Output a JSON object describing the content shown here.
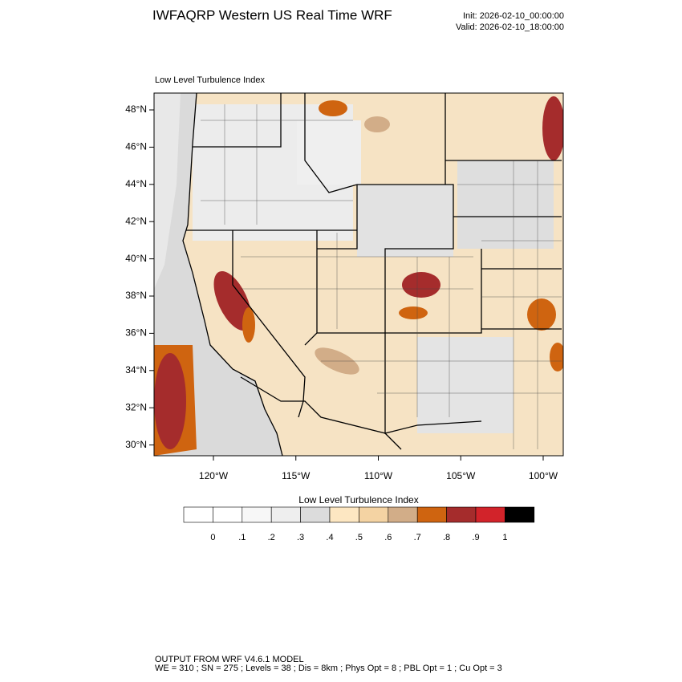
{
  "header": {
    "title": "IWFAQRP Western US Real Time WRF",
    "init": "Init: 2026-02-10_00:00:00",
    "valid": "Valid: 2026-02-10_18:00:00"
  },
  "map": {
    "subtitle": "Low Level Turbulence Index",
    "lat_labels": [
      "48°N",
      "46°N",
      "44°N",
      "42°N",
      "40°N",
      "38°N",
      "36°N",
      "34°N",
      "32°N",
      "30°N"
    ],
    "lon_labels": [
      "120°W",
      "115°W",
      "110°W",
      "105°W",
      "100°W"
    ]
  },
  "colorbar": {
    "title": "Low Level Turbulence Index",
    "labels": [
      "0",
      ".1",
      ".2",
      ".3",
      ".4",
      ".5",
      ".6",
      ".7",
      ".8",
      ".9",
      "1"
    ],
    "colors": [
      "#ffffff",
      "#f7f7f7",
      "#eeeeee",
      "#dcdcdc",
      "#fde7c2",
      "#f4d3a3",
      "#d2ad88",
      "#cf6410",
      "#a52c2c",
      "#d2232a",
      "#000000"
    ],
    "last_color": "#000000"
  },
  "footer": {
    "line1": "OUTPUT FROM WRF V4.6.1 MODEL",
    "line2": "WE = 310 ; SN = 275 ; Levels = 38 ; Dis = 8km ; Phys Opt = 8 ; PBL Opt = 1 ; Cu Opt = 3"
  }
}
